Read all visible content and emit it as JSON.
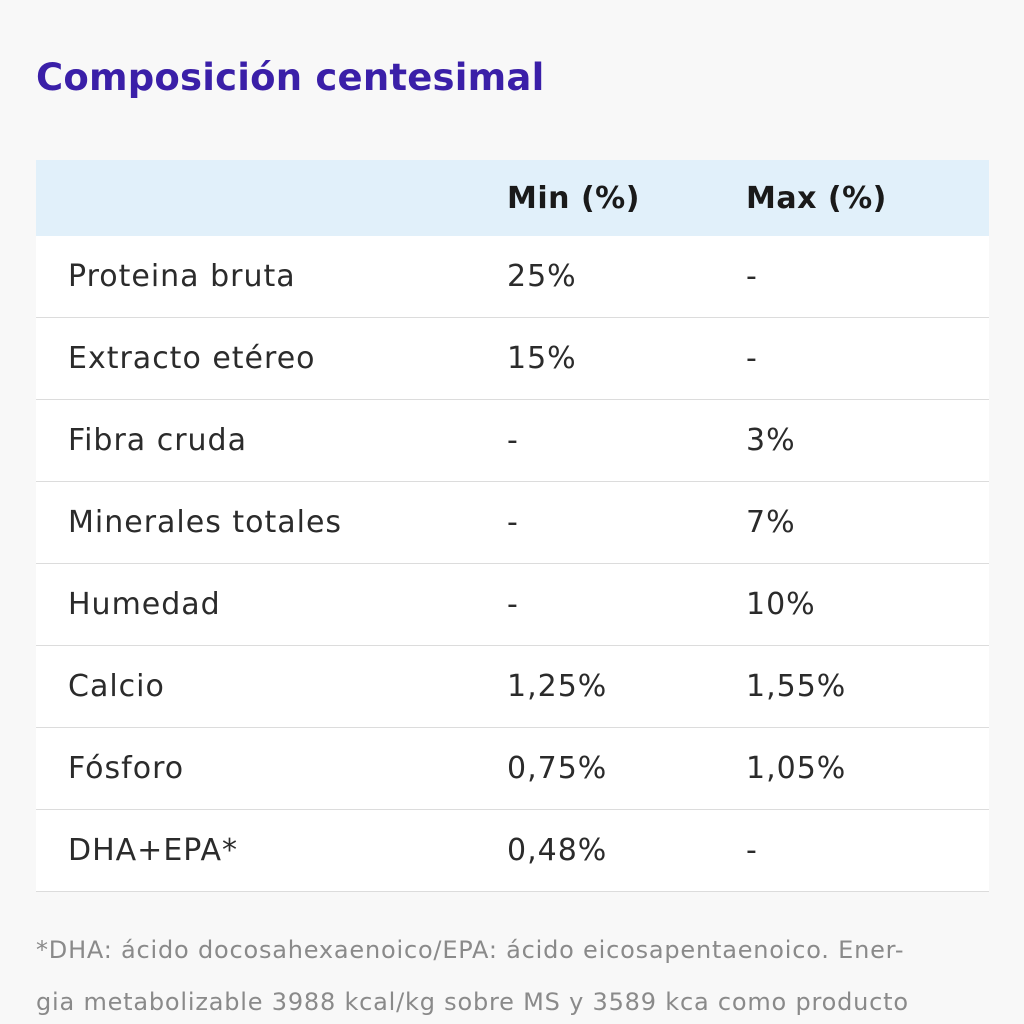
{
  "title": "Composición centesimal",
  "table": {
    "headers": {
      "name": "",
      "min": "Min (%)",
      "max": "Max (%)"
    },
    "rows": [
      {
        "name": "Proteina bruta",
        "min": "25%",
        "max": "-"
      },
      {
        "name": "Extracto etéreo",
        "min": "15%",
        "max": "-"
      },
      {
        "name": "Fibra cruda",
        "min": "-",
        "max": "3%"
      },
      {
        "name": "Minerales totales",
        "min": "-",
        "max": "7%"
      },
      {
        "name": "Humedad",
        "min": "-",
        "max": "10%"
      },
      {
        "name": "Calcio",
        "min": "1,25%",
        "max": "1,55%"
      },
      {
        "name": "Fósforo",
        "min": "0,75%",
        "max": "1,05%"
      },
      {
        "name": "DHA+EPA*",
        "min": "0,48%",
        "max": "-"
      }
    ]
  },
  "footnote": {
    "line1": "*DHA: ácido docosahexaenoico/EPA: ácido eicosapentaenoico. Ener-",
    "line2": "gia metabolizable 3988 kcal/kg sobre MS y 3589 kca como producto"
  },
  "colors": {
    "title": "#3a1fa8",
    "header_bg": "#e1f0fa",
    "row_bg": "#ffffff",
    "divider": "#dcdcdc",
    "footnote_text": "#8a8a8a"
  }
}
